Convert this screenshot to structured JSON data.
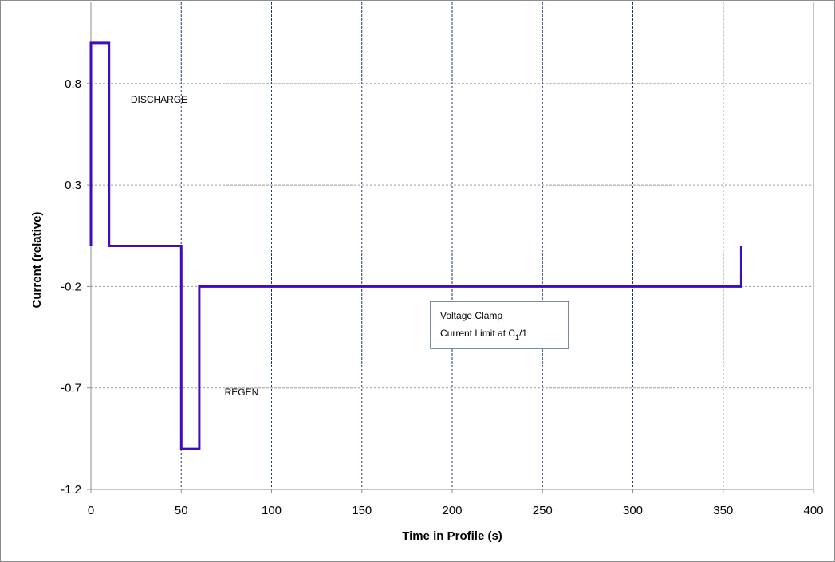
{
  "chart_data": {
    "type": "line",
    "title": "",
    "xlabel": "Time in Profile (s)",
    "ylabel": "Current (relative)",
    "xlim": [
      0,
      400
    ],
    "ylim": [
      -1.2,
      1.2
    ],
    "x_ticks": [
      0,
      50,
      100,
      150,
      200,
      250,
      300,
      350,
      400
    ],
    "y_ticks": [
      0.8,
      0.3,
      -0.2,
      -0.7,
      -1.2
    ],
    "y_tick_labels": [
      "0.8",
      "0.3",
      "-0.2",
      "-0.7",
      "-1.2"
    ],
    "x_tick_labels": [
      "0",
      "50",
      "100",
      "150",
      "200",
      "250",
      "300",
      "350",
      "400"
    ],
    "grid": true,
    "line_color": "#3d0dbf",
    "series": [
      {
        "x": [
          0,
          0,
          10,
          10,
          50,
          50,
          60,
          60,
          360,
          360
        ],
        "y": [
          0,
          1.0,
          1.0,
          0,
          0,
          -1.0,
          -1.0,
          -0.2,
          -0.2,
          0
        ]
      }
    ],
    "annotations": [
      {
        "text": "DISCHARGE",
        "x": 22,
        "y": 0.72
      },
      {
        "text": "REGEN",
        "x": 74,
        "y": -0.72
      }
    ],
    "callout": {
      "line1": "Voltage Clamp",
      "line2_prefix": "Current Limit at C",
      "line2_subscript": "1",
      "line2_suffix": "/1"
    }
  }
}
